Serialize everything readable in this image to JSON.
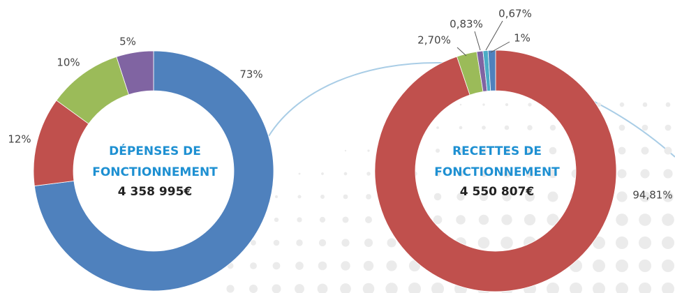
{
  "chart_data": [
    {
      "type": "donut",
      "title_lines": [
        "DÉPENSES DE",
        "FONCTIONNEMENT"
      ],
      "total": "4 358 995€",
      "values": [
        73,
        12,
        10,
        5
      ],
      "value_labels": [
        "73%",
        "12%",
        "10%",
        "5%"
      ],
      "colors": [
        "#4f81bd",
        "#c0504d",
        "#9bbb59",
        "#8064a2"
      ]
    },
    {
      "type": "donut",
      "title_lines": [
        "RECETTES  DE",
        "FONCTIONNEMENT"
      ],
      "total": "4 550 807€",
      "values": [
        94.81,
        2.7,
        0.83,
        0.67,
        1
      ],
      "value_labels": [
        "94,81%",
        "2,70%",
        "0,83%",
        "0,67%",
        "1%"
      ],
      "colors": [
        "#c0504d",
        "#9bbb59",
        "#8064a2",
        "#4bacc6",
        "#4f81bd"
      ]
    }
  ]
}
